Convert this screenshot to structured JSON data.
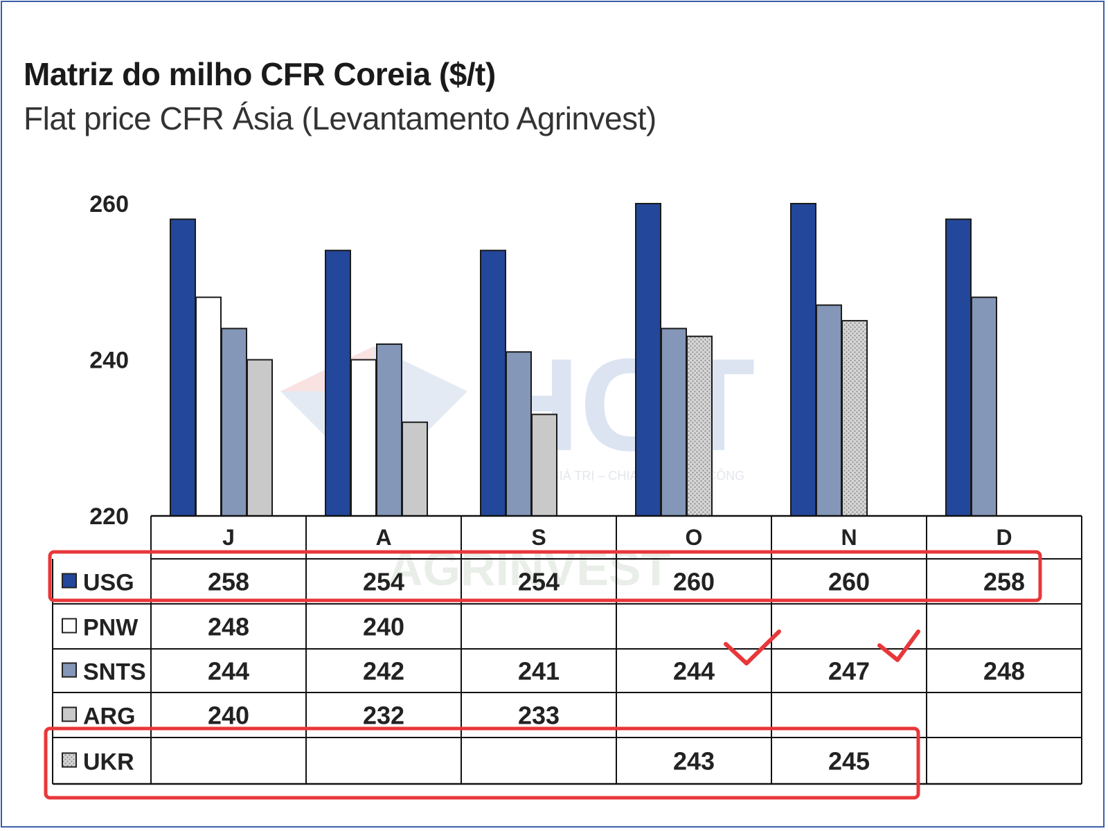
{
  "chart_data": {
    "type": "bar",
    "title": "Matriz do milho CFR Coreia ($/t)",
    "subtitle": "Flat price CFR Ásia (Levantamento Agrinvest)",
    "categories": [
      "J",
      "A",
      "S",
      "O",
      "N",
      "D"
    ],
    "ylim": [
      220,
      260
    ],
    "yticks": [
      "260",
      "240",
      "220"
    ],
    "series": [
      {
        "name": "USG",
        "color": "#23479a",
        "pattern": "solid",
        "values": [
          258,
          254,
          254,
          260,
          260,
          258
        ]
      },
      {
        "name": "PNW",
        "color": "#ffffff",
        "pattern": "solid",
        "values": [
          248,
          240,
          null,
          null,
          null,
          null
        ]
      },
      {
        "name": "SNTS",
        "color": "#8497b9",
        "pattern": "solid",
        "values": [
          244,
          242,
          241,
          244,
          247,
          248
        ]
      },
      {
        "name": "ARG",
        "color": "#c9c9c9",
        "pattern": "solid",
        "values": [
          240,
          232,
          233,
          null,
          null,
          null
        ]
      },
      {
        "name": "UKR",
        "color": "#bdbdbd",
        "pattern": "dotted",
        "values": [
          null,
          null,
          null,
          243,
          245,
          null
        ]
      }
    ],
    "grid": false,
    "legend": "data table below chart"
  },
  "watermark": {
    "logo_text": "HCT",
    "tagline": "KIẾN TẠO GIÁ TRỊ – CHIA SẺ THÀNH CÔNG",
    "background_text": "AGRINVEST"
  },
  "annotations": {
    "highlight_color": "#e8373a",
    "highlighted_rows": [
      "USG",
      "UKR"
    ],
    "checkmarks_after_rows": [
      "SNTS"
    ]
  }
}
